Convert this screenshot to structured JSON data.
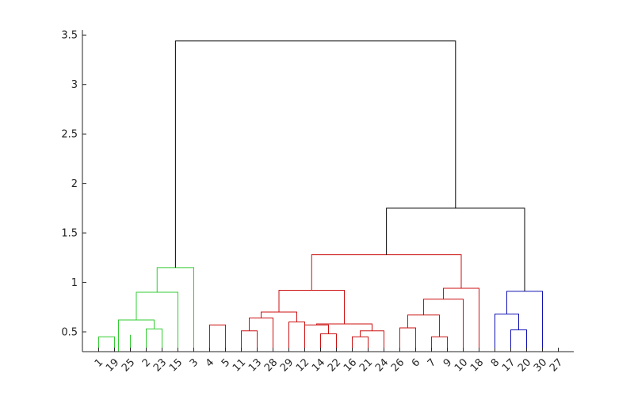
{
  "chart_data": {
    "type": "dendrogram",
    "ylim": [
      0.3,
      3.55
    ],
    "yticks": [
      0.5,
      1,
      1.5,
      2,
      2.5,
      3,
      3.5
    ],
    "ytick_labels": [
      "0.5",
      "1",
      "1.5",
      "2",
      "2.5",
      "3",
      "3.5"
    ],
    "leaf_order": [
      "1",
      "19",
      "25",
      "2",
      "23",
      "15",
      "3",
      "4",
      "5",
      "11",
      "13",
      "28",
      "29",
      "12",
      "14",
      "22",
      "16",
      "21",
      "24",
      "26",
      "6",
      "7",
      "9",
      "10",
      "18",
      "8",
      "17",
      "20",
      "30",
      "27"
    ],
    "colors": {
      "green": "#33cc33",
      "red": "#cc1111",
      "blue": "#1111b3",
      "black": "#000000"
    },
    "links": [
      {
        "children": [
          1,
          2
        ],
        "height": 0.45,
        "color": "green"
      },
      {
        "children": [
          3,
          3
        ],
        "height": 0.47,
        "color": "green"
      },
      {
        "children": [
          4,
          5
        ],
        "height": 0.53,
        "color": "green"
      },
      {
        "children": [
          2.25,
          4.5
        ],
        "height": 0.62,
        "color": "green"
      },
      {
        "children": [
          3.375,
          6
        ],
        "height": 0.9,
        "color": "green"
      },
      {
        "children": [
          4.6875,
          7
        ],
        "height": 1.15,
        "color": "green"
      },
      {
        "children": [
          8,
          9
        ],
        "height": 0.57,
        "color": "red"
      },
      {
        "children": [
          10,
          11
        ],
        "height": 0.51,
        "color": "red"
      },
      {
        "children": [
          10.5,
          12
        ],
        "height": 0.64,
        "color": "red"
      },
      {
        "children": [
          13,
          14
        ],
        "height": 0.6,
        "color": "red"
      },
      {
        "children": [
          11.25,
          13.5
        ],
        "height": 0.7,
        "color": "red"
      },
      {
        "children": [
          15,
          16
        ],
        "height": 0.48,
        "color": "red"
      },
      {
        "children": [
          14,
          15.5
        ],
        "height": 0.57,
        "color": "red"
      },
      {
        "children": [
          17,
          18
        ],
        "height": 0.45,
        "color": "red"
      },
      {
        "children": [
          17.5,
          19
        ],
        "height": 0.51,
        "color": "red"
      },
      {
        "children": [
          14.75,
          18.25
        ],
        "height": 0.58,
        "color": "red"
      },
      {
        "children": [
          12.375,
          16.5
        ],
        "height": 0.92,
        "color": "red"
      },
      {
        "children": [
          20,
          21
        ],
        "height": 0.54,
        "color": "red"
      },
      {
        "children": [
          22,
          23
        ],
        "height": 0.45,
        "color": "red"
      },
      {
        "children": [
          20.5,
          22.5
        ],
        "height": 0.67,
        "color": "red"
      },
      {
        "children": [
          21.5,
          24
        ],
        "height": 0.83,
        "color": "red"
      },
      {
        "children": [
          22.75,
          25
        ],
        "height": 0.94,
        "color": "red"
      },
      {
        "children": [
          14.4375,
          23.875
        ],
        "height": 1.28,
        "color": "red"
      },
      {
        "children": [
          27,
          28
        ],
        "height": 0.52,
        "color": "blue"
      },
      {
        "children": [
          26,
          27.5
        ],
        "height": 0.68,
        "color": "blue"
      },
      {
        "children": [
          26.75,
          29
        ],
        "height": 0.91,
        "color": "blue"
      },
      {
        "children": [
          19.15625,
          27.875
        ],
        "height": 1.75,
        "color": "black"
      },
      {
        "children": [
          5.84375,
          23.515625
        ],
        "height": 3.44,
        "color": "black"
      }
    ]
  }
}
